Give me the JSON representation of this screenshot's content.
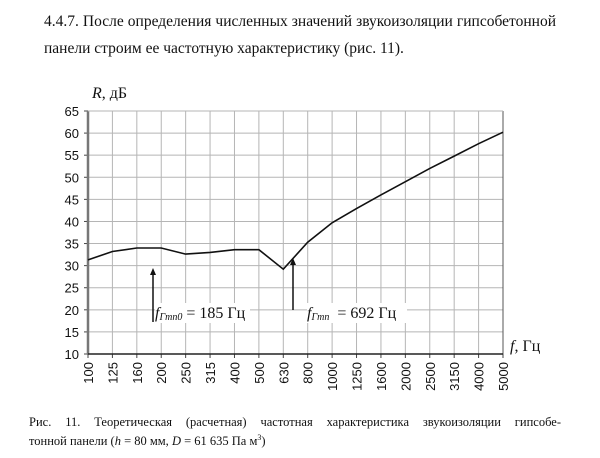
{
  "document": {
    "paragraph_line1": "4.4.7. После определения численных значений звукоизоляции гипсобетонной",
    "paragraph_line2": "панели строим ее частотную характеристику (рис. 11).",
    "caption_line1": "Рис. 11. Теоретическая (расчетная) частотная характеристика звукоизоляции гипсобе-",
    "caption_line2_prefix": "тонной панели (",
    "caption_h_var": "h",
    "caption_h_value": " = 80 мм, ",
    "caption_d_var": "D",
    "caption_d_value": " = 61 635 Па м",
    "caption_d_sup": "3",
    "caption_suffix": ")"
  },
  "chart_data": {
    "type": "line",
    "title": "",
    "xlabel": "f, Гц",
    "xlabel_var": "f",
    "xlabel_unit": ", Гц",
    "ylabel": "R, дБ",
    "ylabel_var": "R",
    "ylabel_unit": ", дБ",
    "categories": [
      "100",
      "125",
      "160",
      "200",
      "250",
      "315",
      "400",
      "500",
      "630",
      "800",
      "1000",
      "1250",
      "1600",
      "2000",
      "2500",
      "3150",
      "4000",
      "5000"
    ],
    "x_ticks": [
      "100",
      "125",
      "160",
      "200",
      "250",
      "315",
      "400",
      "500",
      "630",
      "800",
      "1000",
      "1250",
      "1600",
      "2000",
      "2500",
      "3150",
      "4000",
      "5000"
    ],
    "y_ticks": [
      10,
      15,
      20,
      25,
      30,
      35,
      40,
      45,
      50,
      55,
      60,
      65
    ],
    "ylim": [
      10,
      65
    ],
    "grid": true,
    "legend": null,
    "series": [
      {
        "name": "R",
        "values": [
          31.3,
          33.2,
          34.0,
          34.0,
          32.6,
          33.0,
          33.6,
          33.6,
          29.2,
          35.3,
          39.7,
          42.9,
          46.0,
          49.0,
          52.0,
          54.8,
          57.6,
          60.2
        ]
      }
    ],
    "annotations": [
      {
        "label_var": "f",
        "label_sub": "Гmn0",
        "label_value": " = 185 Гц",
        "x": 185,
        "arrow": "up"
      },
      {
        "label_var": "f",
        "label_sub": "Гmn",
        "label_value": " = 692 Гц",
        "x": 692,
        "arrow": "up"
      }
    ],
    "colors": {
      "line": "#111111",
      "grid": "#b5b5b5",
      "axis": "#222222"
    }
  }
}
